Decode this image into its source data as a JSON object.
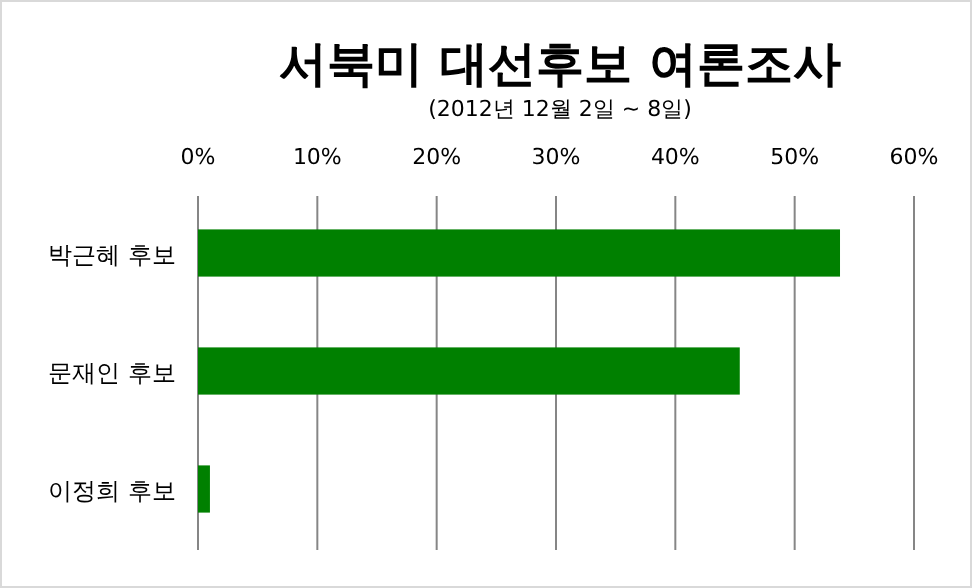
{
  "chart_data": {
    "type": "bar",
    "orientation": "horizontal",
    "title": "서북미 대선후보 여론조사",
    "subtitle": "(2012년 12월 2일 ~ 8일)",
    "categories": [
      "박근혜 후보",
      "문재인 후보",
      "이정희 후보"
    ],
    "values": [
      53.8,
      45.4,
      1.0
    ],
    "color": "#008000",
    "xlim": [
      0,
      60
    ],
    "xticks": [
      {
        "value": 0,
        "label": "0%"
      },
      {
        "value": 10,
        "label": "10%"
      },
      {
        "value": 20,
        "label": "20%"
      },
      {
        "value": 30,
        "label": "30%"
      },
      {
        "value": 40,
        "label": "40%"
      },
      {
        "value": 50,
        "label": "50%"
      },
      {
        "value": 60,
        "label": "60%"
      }
    ],
    "grid": "x"
  }
}
